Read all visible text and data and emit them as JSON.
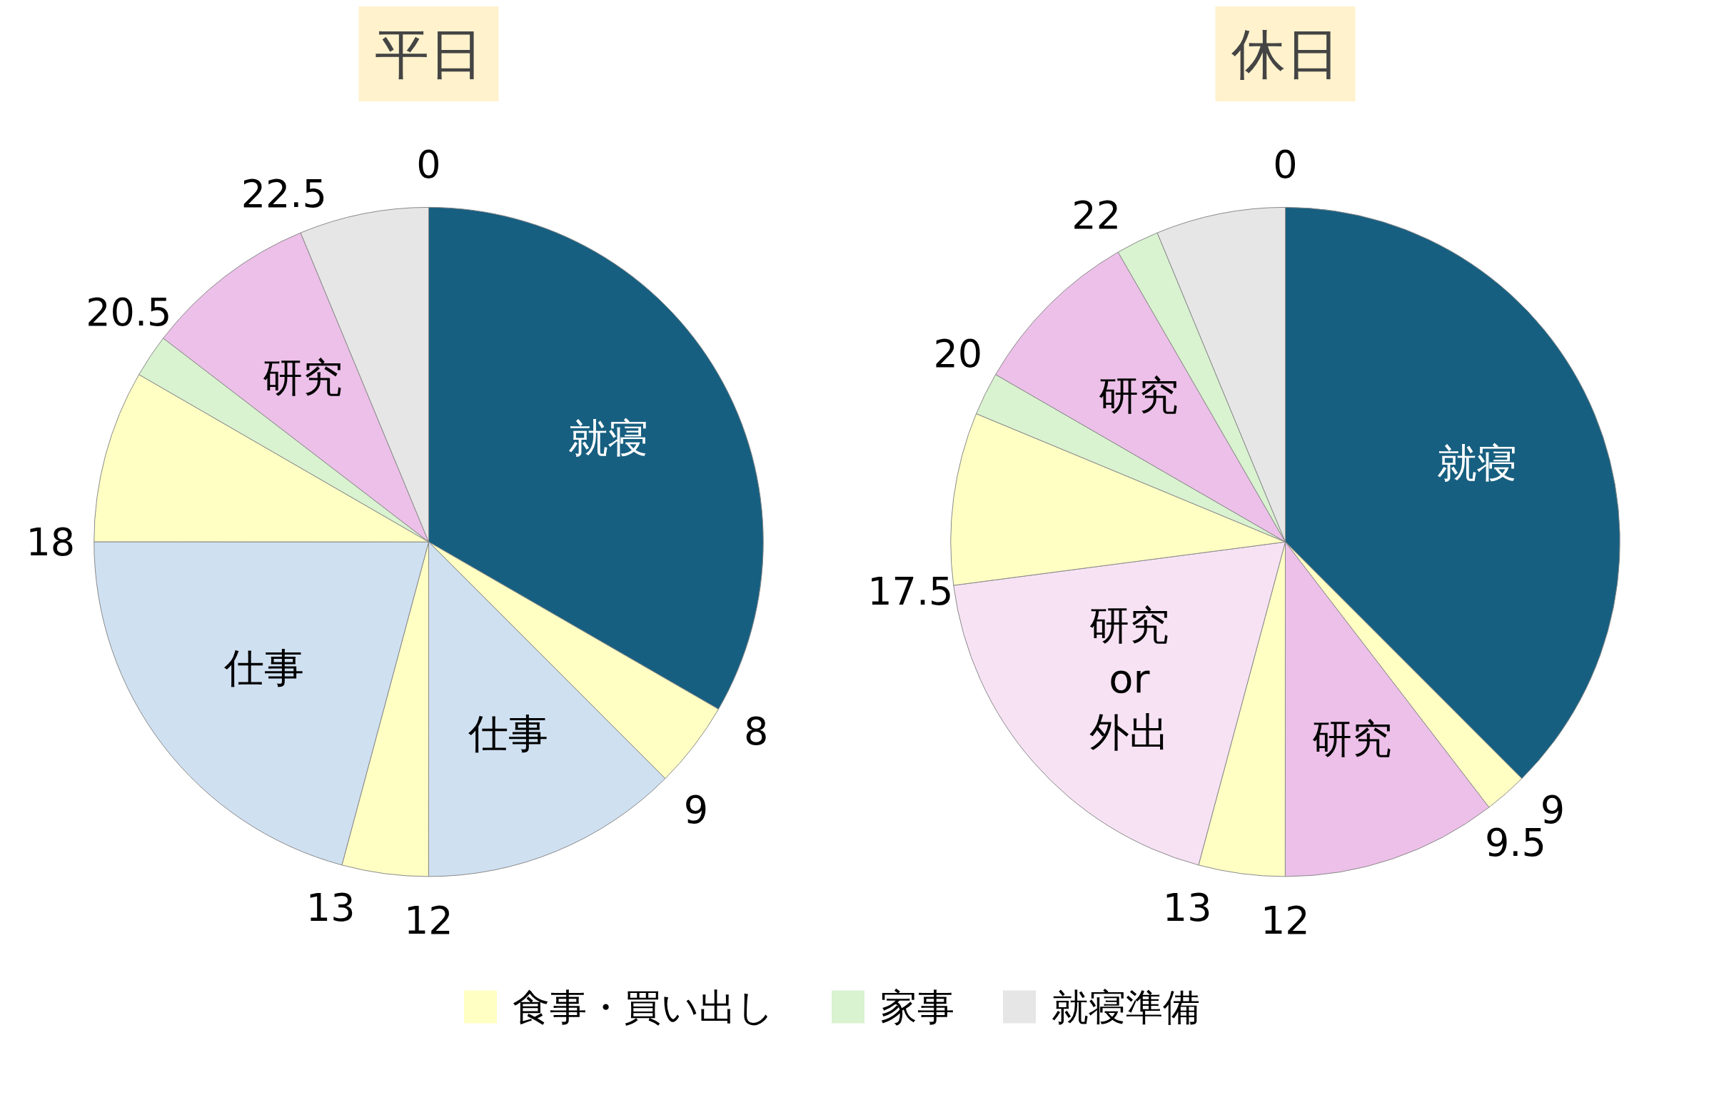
{
  "chart_data": [
    {
      "type": "pie",
      "title": "平日",
      "legend": "bottom",
      "categories": [
        null,
        "食事・買い出し",
        null,
        null,
        null,
        null,
        "家事",
        null,
        "就寝準備"
      ],
      "values": [
        33.33,
        4.17,
        12.5,
        4.17,
        20.83,
        8.33,
        2.08,
        8.33,
        6.25
      ],
      "value_labels": [
        "就寝",
        null,
        "仕事",
        null,
        "仕事",
        null,
        null,
        "研究",
        null
      ],
      "annotations": [
        "0",
        "8",
        "9",
        "12",
        "13",
        "18",
        null,
        "20.5",
        "22.5"
      ],
      "colors": [
        "#175f80",
        "#ffffc4",
        "#cfe0f1",
        "#ffffc4",
        "#cfe0f1",
        "#ffffc4",
        "#d9f2d0",
        "#ecc0e8",
        "#e6e6e6"
      ]
    },
    {
      "type": "pie",
      "title": "休日",
      "categories": [
        null,
        null,
        null,
        null,
        null,
        null,
        null,
        null,
        null,
        null
      ],
      "values": [
        37.5,
        2.08,
        10.42,
        4.17,
        18.75,
        8.33,
        2.08,
        8.33,
        2.08,
        6.25
      ],
      "value_labels": [
        "就寝",
        null,
        "研究",
        null,
        "研究\nor\n外出",
        null,
        null,
        "研究",
        null,
        null
      ],
      "annotations": [
        "0",
        "9",
        "9.5",
        "12",
        "13",
        "17.5",
        null,
        "20",
        "22",
        null
      ],
      "colors": [
        "#175f80",
        "#ffffc4",
        "#ecc0e8",
        "#ffffc4",
        "#f7e2f4",
        "#ffffc4",
        "#d9f2d0",
        "#ecc0e8",
        "#d9f2d0",
        "#e6e6e6"
      ]
    }
  ]
}
